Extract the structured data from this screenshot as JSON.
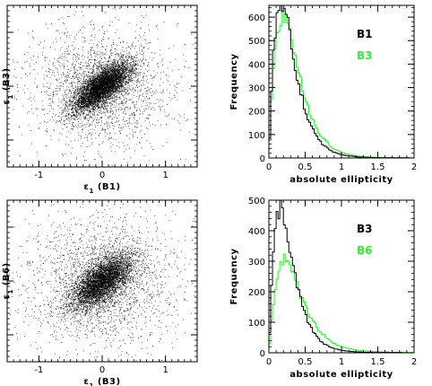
{
  "colors": {
    "black": "#000000",
    "green": "#33ee33",
    "frame": "#000000"
  },
  "chart_data": [
    {
      "type": "scatter",
      "panel": "top-left",
      "xlabel_prefix": "ε",
      "xlabel_sub": "1",
      "xlabel_suffix": "(B1)",
      "ylabel_prefix": "ε",
      "ylabel_sub": "1",
      "ylabel_suffix": "(B3)",
      "xlim": [
        -1.5,
        1.5
      ],
      "ylim": [
        -1.5,
        1.5
      ],
      "x_ticks": [
        "-1",
        "0",
        "1"
      ],
      "y_ticks": [
        "-1",
        "0",
        "1"
      ],
      "cloud": {
        "center": [
          0,
          0
        ],
        "sigma_major": 0.3,
        "sigma_minor": 0.12,
        "angle_deg": 45,
        "halo_sigma": 0.38,
        "n_core": 5200,
        "n_halo": 2200
      }
    },
    {
      "type": "bar",
      "panel": "top-right",
      "xlabel": "absolute ellipticity",
      "ylabel": "Frequency",
      "xlim": [
        0,
        2
      ],
      "ylim": [
        0,
        650
      ],
      "x_ticks": [
        "0",
        "0.5",
        "1",
        "1.5",
        "2"
      ],
      "y_ticks": [
        "0",
        "100",
        "200",
        "300",
        "400",
        "500",
        "600"
      ],
      "legend_position": "top-right",
      "series": [
        {
          "name": "B1",
          "color": "#000000",
          "peak_x": 0.16,
          "peak": 640,
          "width": 0.19
        },
        {
          "name": "B3",
          "color": "#33ee33",
          "peak_x": 0.18,
          "peak": 600,
          "width": 0.21
        }
      ]
    },
    {
      "type": "scatter",
      "panel": "bottom-left",
      "xlabel_prefix": "ε",
      "xlabel_sub": "1",
      "xlabel_suffix": "(B3)",
      "ylabel_prefix": "ε",
      "ylabel_sub": "1",
      "ylabel_suffix": "(B6)",
      "xlim": [
        -1.5,
        1.5
      ],
      "ylim": [
        -1.5,
        1.5
      ],
      "x_ticks": [
        "-1",
        "0",
        "1"
      ],
      "y_ticks": [
        "-1",
        "0",
        "1"
      ],
      "cloud": {
        "center": [
          0,
          0
        ],
        "sigma_major": 0.32,
        "sigma_minor": 0.15,
        "angle_deg": 48,
        "halo_sigma": 0.42,
        "n_core": 4600,
        "n_halo": 2400
      }
    },
    {
      "type": "bar",
      "panel": "bottom-right",
      "xlabel": "absolute ellipticity",
      "ylabel": "Frequency",
      "xlim": [
        0,
        2
      ],
      "ylim": [
        0,
        500
      ],
      "x_ticks": [
        "0",
        "0.5",
        "1",
        "1.5",
        "2"
      ],
      "y_ticks": [
        "0",
        "100",
        "200",
        "300",
        "400",
        "500"
      ],
      "legend_position": "top-right",
      "series": [
        {
          "name": "B3",
          "color": "#000000",
          "peak_x": 0.15,
          "peak": 460,
          "width": 0.2
        },
        {
          "name": "B6",
          "color": "#33ee33",
          "peak_x": 0.2,
          "peak": 290,
          "width": 0.32
        }
      ]
    }
  ]
}
